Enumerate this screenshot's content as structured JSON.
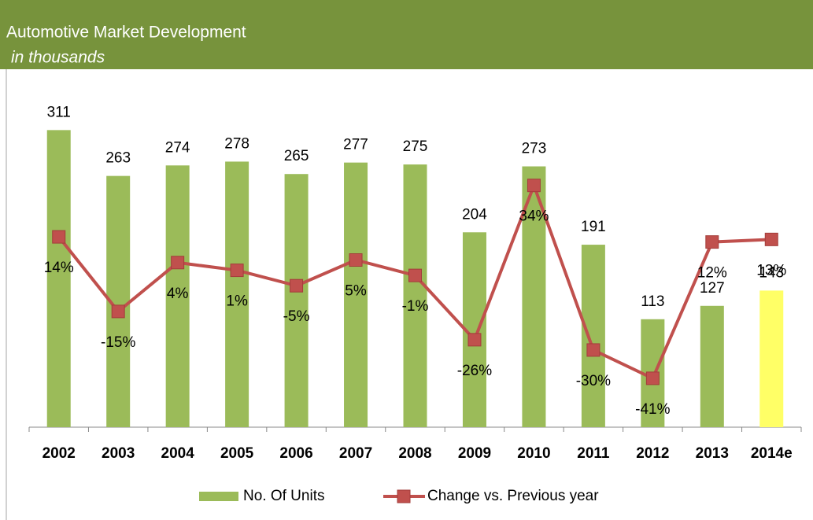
{
  "chart_data": {
    "type": "bar_line",
    "title": "Automotive Market Development",
    "subtitle": "in thousands",
    "categories": [
      "2002",
      "2003",
      "2004",
      "2005",
      "2006",
      "2007",
      "2008",
      "2009",
      "2010",
      "2011",
      "2012",
      "2013",
      "2014e"
    ],
    "series": [
      {
        "name": "No. Of Units",
        "type": "bar",
        "color": "#9bbb59",
        "colors": [
          "#9bbb59",
          "#9bbb59",
          "#9bbb59",
          "#9bbb59",
          "#9bbb59",
          "#9bbb59",
          "#9bbb59",
          "#9bbb59",
          "#9bbb59",
          "#9bbb59",
          "#9bbb59",
          "#9bbb59",
          "#ffff66"
        ],
        "values": [
          311,
          263,
          274,
          278,
          265,
          277,
          275,
          204,
          273,
          191,
          113,
          127,
          143
        ]
      },
      {
        "name": "Change vs. Previous year",
        "type": "line",
        "axis": "y2",
        "color": "#c0504d",
        "values": [
          14,
          -15,
          4,
          1,
          -5,
          5,
          -1,
          -26,
          34,
          -30,
          -41,
          12,
          13
        ],
        "value_labels": [
          "14%",
          "-15%",
          "4%",
          "1%",
          "-5%",
          "5%",
          "-1%",
          "-26%",
          "34%",
          "-30%",
          "-41%",
          "12%",
          "13%"
        ]
      }
    ],
    "ylim": [
      0,
      350
    ],
    "y2lim": [
      -60,
      70
    ],
    "legend": "bottom"
  }
}
